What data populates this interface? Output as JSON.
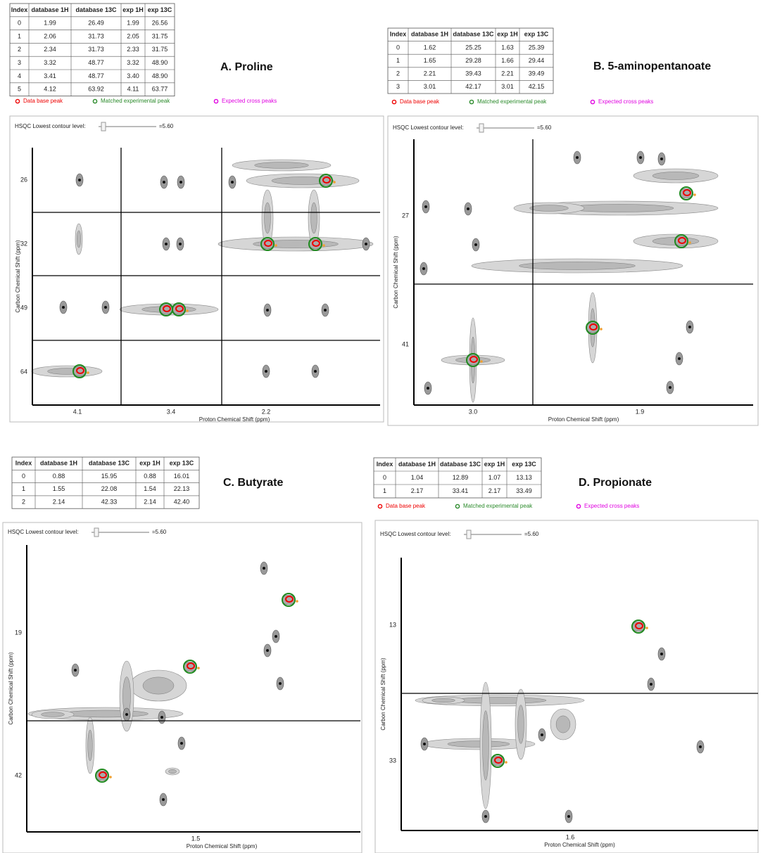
{
  "panels": [
    {
      "title": "A. Proline",
      "table": {
        "header": [
          "Index",
          "database 1H",
          "database 13C",
          "exp 1H",
          "exp 13C"
        ],
        "rows": [
          [
            "0",
            "1.99",
            "26.49",
            "1.99",
            "26.56"
          ],
          [
            "1",
            "2.06",
            "31.73",
            "2.05",
            "31.75"
          ],
          [
            "2",
            "2.34",
            "31.73",
            "2.33",
            "31.75"
          ],
          [
            "3",
            "3.32",
            "48.77",
            "3.32",
            "48.90"
          ],
          [
            "4",
            "3.41",
            "48.77",
            "3.40",
            "48.90"
          ],
          [
            "5",
            "4.12",
            "63.92",
            "4.11",
            "63.77"
          ]
        ]
      },
      "legend": [
        "Data base peak",
        "Matched experimental peak",
        "Expected cross peaks"
      ],
      "slider_label": "HSQC Lowest contour level:",
      "slider_value": "=5.60",
      "y_label": "Carbon Chemical Shift (ppm)",
      "x_label": "Proton Chemical Shift (ppm)",
      "yticks": [
        "26",
        "32",
        "49",
        "64"
      ],
      "xticks": [
        "4.1",
        "3.4",
        "2.2"
      ]
    },
    {
      "title": "B. 5-aminopentanoate",
      "table": {
        "header": [
          "Index",
          "database 1H",
          "database 13C",
          "exp 1H",
          "exp 13C"
        ],
        "rows": [
          [
            "0",
            "1.62",
            "25.25",
            "1.63",
            "25.39"
          ],
          [
            "1",
            "1.65",
            "29.28",
            "1.66",
            "29.44"
          ],
          [
            "2",
            "2.21",
            "39.43",
            "2.21",
            "39.49"
          ],
          [
            "3",
            "3.01",
            "42.17",
            "3.01",
            "42.15"
          ]
        ]
      },
      "legend": [
        "Data base peak",
        "Matched experimental peak",
        "Expected cross peaks"
      ],
      "slider_label": "HSQC Lowest contour level:",
      "slider_value": "=5.60",
      "y_label": "Carbon Chemical Shift (ppm)",
      "x_label": "Proton Chemical Shift (ppm)",
      "yticks": [
        "27",
        "41"
      ],
      "xticks": [
        "3.0",
        "1.9"
      ]
    },
    {
      "title": "C. Butyrate",
      "table": {
        "header": [
          "Index",
          "database 1H",
          "database 13C",
          "exp 1H",
          "exp 13C"
        ],
        "rows": [
          [
            "0",
            "0.88",
            "15.95",
            "0.88",
            "16.01"
          ],
          [
            "1",
            "1.55",
            "22.08",
            "1.54",
            "22.13"
          ],
          [
            "2",
            "2.14",
            "42.33",
            "2.14",
            "42.40"
          ]
        ]
      },
      "slider_label": "HSQC Lowest contour level:",
      "slider_value": "=5.60",
      "y_label": "Carbon Chemical Shift (ppm)",
      "x_label": "Proton Chemical Shift (ppm)",
      "yticks": [
        "19",
        "42"
      ],
      "xticks": [
        "1.5"
      ]
    },
    {
      "title": "D. Propionate",
      "table": {
        "header": [
          "Index",
          "database 1H",
          "database 13C",
          "exp 1H",
          "exp 13C"
        ],
        "rows": [
          [
            "0",
            "1.04",
            "12.89",
            "1.07",
            "13.13"
          ],
          [
            "1",
            "2.17",
            "33.41",
            "2.17",
            "33.49"
          ]
        ]
      },
      "legend": [
        "Data base peak",
        "Matched experimental peak",
        "Expected cross peaks"
      ],
      "slider_label": "HSQC Lowest contour level:",
      "slider_value": "=5.60",
      "y_label": "Carbon Chemical Shift (ppm)",
      "x_label": "Proton Chemical Shift (ppm)",
      "yticks": [
        "13",
        "33"
      ],
      "xticks": [
        "1.6"
      ]
    }
  ]
}
